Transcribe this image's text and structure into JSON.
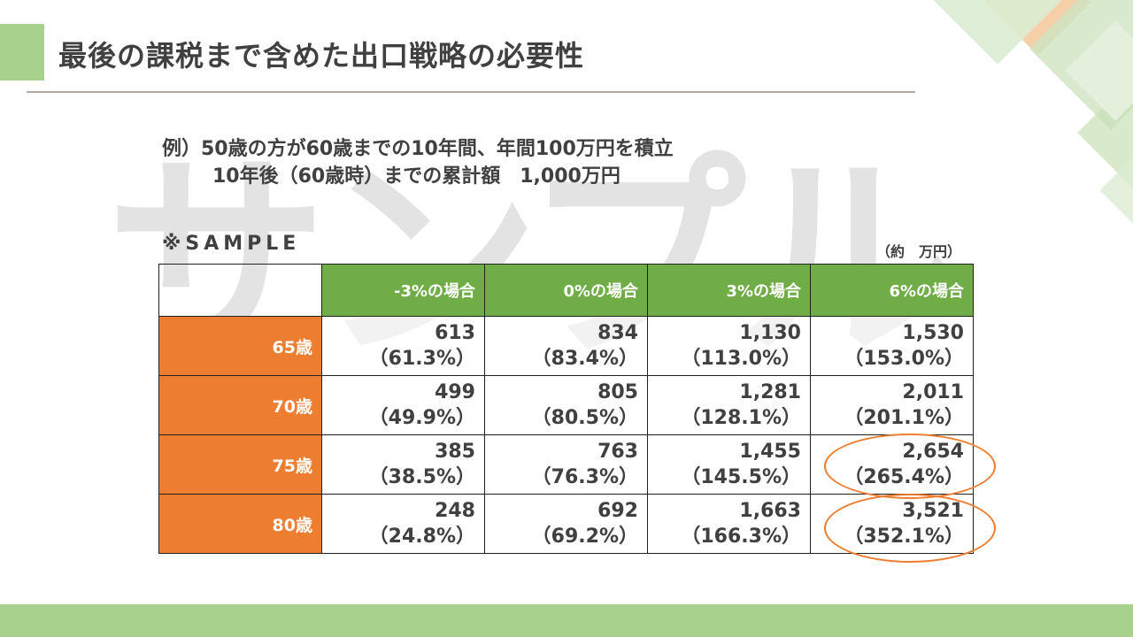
{
  "slide": {
    "title": "最後の課税まで含めた出口戦略の必要性",
    "example": {
      "line1": "例）50歳の方が60歳までの10年間、年間100万円を積立",
      "line2": "10年後（60歳時）までの累計額　1,000万円"
    },
    "watermark": "サンプル",
    "sample_label": "※SAMPLE",
    "unit_label": "（約　万円）"
  },
  "table": {
    "columns": [
      "-3%の場合",
      "0%の場合",
      "3%の場合",
      "6%の場合"
    ],
    "rows": [
      {
        "age": "65歳",
        "cells": [
          [
            "613",
            "（61.3%）"
          ],
          [
            "834",
            "（83.4%）"
          ],
          [
            "1,130",
            "（113.0%）"
          ],
          [
            "1,530",
            "（153.0%）"
          ]
        ]
      },
      {
        "age": "70歳",
        "cells": [
          [
            "499",
            "（49.9%）"
          ],
          [
            "805",
            "（80.5%）"
          ],
          [
            "1,281",
            "（128.1%）"
          ],
          [
            "2,011",
            "（201.1%）"
          ]
        ]
      },
      {
        "age": "75歳",
        "cells": [
          [
            "385",
            "（38.5%）"
          ],
          [
            "763",
            "（76.3%）"
          ],
          [
            "1,455",
            "（145.5%）"
          ],
          [
            "2,654",
            "（265.4%）"
          ]
        ]
      },
      {
        "age": "80歳",
        "cells": [
          [
            "248",
            "（24.8%）"
          ],
          [
            "692",
            "（69.2%）"
          ],
          [
            "1,663",
            "（166.3%）"
          ],
          [
            "3,521",
            "（352.1%）"
          ]
        ]
      }
    ]
  },
  "colors": {
    "header_green": "#70ad47",
    "age_orange": "#ed7d31",
    "highlight_circle": "#ed7d31",
    "accent_green": "#a9d18e"
  }
}
